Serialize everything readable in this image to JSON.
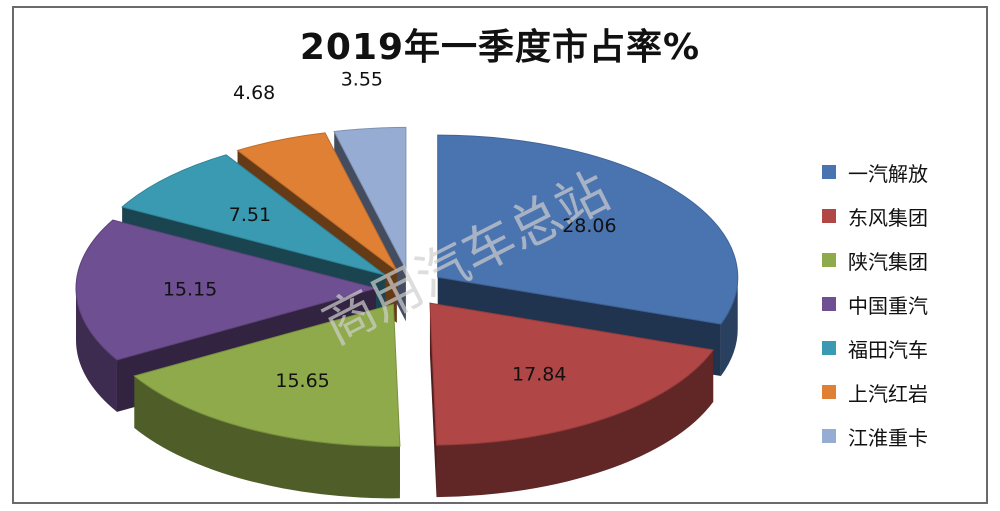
{
  "chart_data": {
    "type": "pie",
    "title": "2019年一季度市占率%",
    "categories": [
      "一汽解放",
      "东风集团",
      "陕汽集团",
      "中国重汽",
      "福田汽车",
      "上汽红岩",
      "江淮重卡"
    ],
    "values": [
      28.06,
      17.84,
      15.65,
      15.15,
      7.51,
      4.68,
      3.55
    ],
    "colors": [
      "#4a74b0",
      "#b04645",
      "#8faa4a",
      "#6e4f91",
      "#3a9ab2",
      "#e08034",
      "#97acd3"
    ],
    "legend": "right",
    "style": "3d-exploded"
  },
  "watermark": "商用汽车总站"
}
